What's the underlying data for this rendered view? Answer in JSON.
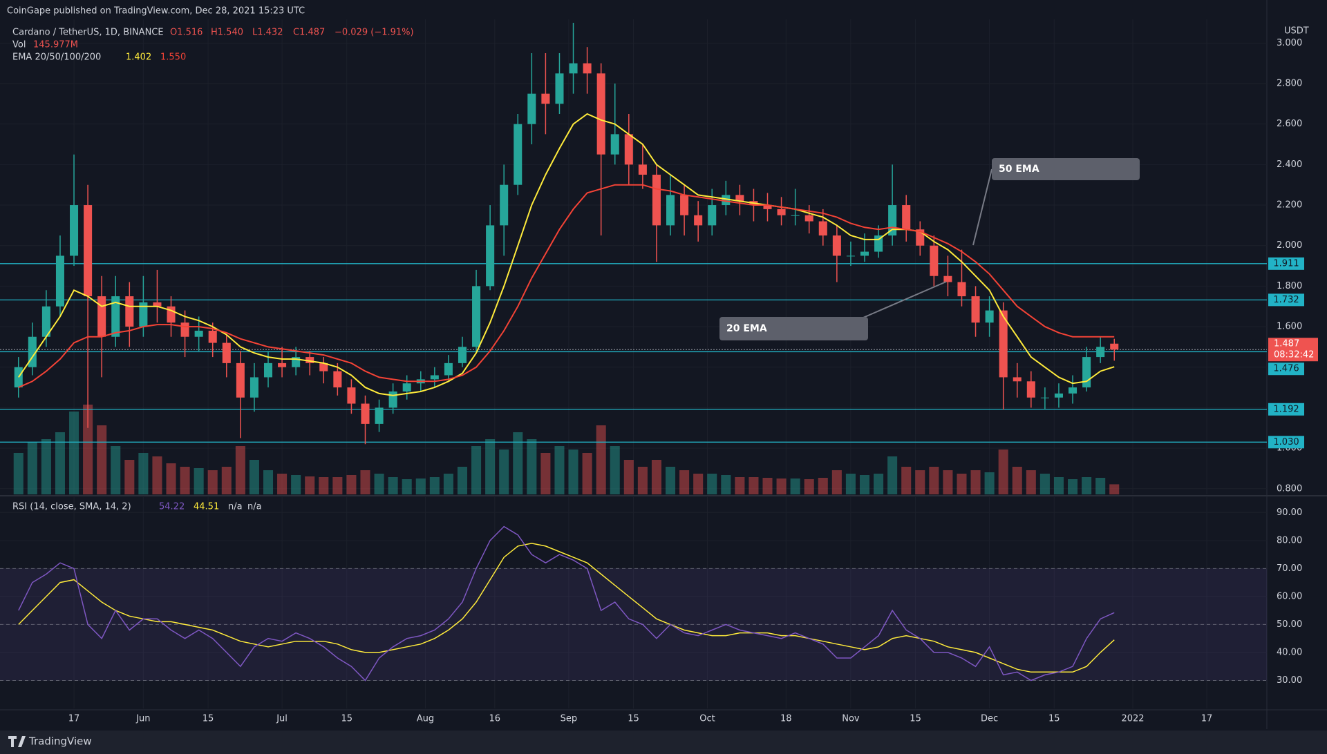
{
  "chart_data": {
    "type": "candlestick",
    "header": {
      "publisher": "CoinGape published on TradingView.com, Dec 28, 2021 15:23 UTC",
      "symbol": "Cardano / TetherUS, 1D, BINANCE",
      "ohlc": [
        "O1.516",
        "H1.540",
        "L1.432",
        "C1.487",
        "−0.029 (−1.91%)"
      ],
      "ema_legend": {
        "label": "EMA 20/50/100/200",
        "values": [
          "1.402",
          "1.550"
        ]
      },
      "currency": "USDT"
    },
    "footer": "TradingView",
    "colors": {
      "up": "#26a69a",
      "down": "#ef5350"
    },
    "x": [
      "2021-05-05",
      "2021-05-08",
      "2021-05-11",
      "2021-05-14",
      "2021-05-17",
      "2021-05-20",
      "2021-05-23",
      "2021-05-26",
      "2021-05-29",
      "2021-06-01",
      "2021-06-04",
      "2021-06-07",
      "2021-06-10",
      "2021-06-13",
      "2021-06-16",
      "2021-06-19",
      "2021-06-22",
      "2021-06-25",
      "2021-06-28",
      "2021-07-01",
      "2021-07-04",
      "2021-07-07",
      "2021-07-10",
      "2021-07-13",
      "2021-07-16",
      "2021-07-19",
      "2021-07-22",
      "2021-07-25",
      "2021-07-28",
      "2021-07-31",
      "2021-08-03",
      "2021-08-06",
      "2021-08-09",
      "2021-08-12",
      "2021-08-15",
      "2021-08-18",
      "2021-08-21",
      "2021-08-24",
      "2021-08-27",
      "2021-08-30",
      "2021-09-02",
      "2021-09-05",
      "2021-09-08",
      "2021-09-11",
      "2021-09-14",
      "2021-09-17",
      "2021-09-20",
      "2021-09-23",
      "2021-09-26",
      "2021-09-29",
      "2021-10-02",
      "2021-10-05",
      "2021-10-08",
      "2021-10-11",
      "2021-10-14",
      "2021-10-17",
      "2021-10-20",
      "2021-10-23",
      "2021-10-26",
      "2021-10-29",
      "2021-11-01",
      "2021-11-04",
      "2021-11-07",
      "2021-11-10",
      "2021-11-13",
      "2021-11-16",
      "2021-11-19",
      "2021-11-22",
      "2021-11-25",
      "2021-11-28",
      "2021-12-01",
      "2021-12-04",
      "2021-12-07",
      "2021-12-10",
      "2021-12-13",
      "2021-12-16",
      "2021-12-19",
      "2021-12-22",
      "2021-12-25",
      "2021-12-28"
    ],
    "open": [
      1.3,
      1.4,
      1.55,
      1.7,
      1.95,
      2.2,
      1.75,
      1.55,
      1.75,
      1.6,
      1.72,
      1.7,
      1.62,
      1.55,
      1.58,
      1.52,
      1.42,
      1.25,
      1.35,
      1.42,
      1.4,
      1.45,
      1.42,
      1.38,
      1.3,
      1.22,
      1.12,
      1.2,
      1.28,
      1.32,
      1.34,
      1.36,
      1.42,
      1.5,
      1.8,
      2.1,
      2.3,
      2.6,
      2.75,
      2.7,
      2.85,
      2.9,
      2.85,
      2.45,
      2.55,
      2.4,
      2.35,
      2.1,
      2.25,
      2.15,
      2.1,
      2.2,
      2.25,
      2.22,
      2.2,
      2.18,
      2.15,
      2.15,
      2.12,
      2.05,
      1.95,
      1.95,
      1.97,
      2.05,
      2.2,
      2.08,
      2.0,
      1.85,
      1.82,
      1.75,
      1.62,
      1.68,
      1.35,
      1.33,
      1.25,
      1.25,
      1.27,
      1.3,
      1.45,
      1.516
    ],
    "high": [
      1.45,
      1.62,
      1.78,
      2.05,
      2.45,
      2.3,
      1.85,
      1.85,
      1.82,
      1.85,
      1.88,
      1.75,
      1.68,
      1.65,
      1.62,
      1.56,
      1.48,
      1.42,
      1.48,
      1.5,
      1.5,
      1.48,
      1.45,
      1.42,
      1.34,
      1.26,
      1.24,
      1.32,
      1.36,
      1.38,
      1.4,
      1.46,
      1.55,
      1.88,
      2.2,
      2.4,
      2.65,
      2.95,
      2.95,
      2.95,
      3.1,
      2.98,
      2.9,
      2.8,
      2.65,
      2.5,
      2.4,
      2.35,
      2.3,
      2.22,
      2.28,
      2.32,
      2.3,
      2.28,
      2.26,
      2.24,
      2.28,
      2.2,
      2.18,
      2.1,
      2.02,
      2.06,
      2.1,
      2.4,
      2.25,
      2.12,
      2.05,
      1.95,
      1.98,
      1.8,
      1.75,
      1.72,
      1.42,
      1.38,
      1.3,
      1.32,
      1.36,
      1.5,
      1.55,
      1.54
    ],
    "low": [
      1.25,
      1.36,
      1.5,
      1.65,
      1.9,
      1.1,
      1.35,
      1.5,
      1.5,
      1.55,
      1.62,
      1.55,
      1.45,
      1.48,
      1.45,
      1.35,
      1.05,
      1.18,
      1.3,
      1.35,
      1.36,
      1.36,
      1.32,
      1.26,
      1.17,
      1.02,
      1.08,
      1.17,
      1.24,
      1.28,
      1.3,
      1.33,
      1.4,
      1.48,
      1.78,
      1.95,
      2.25,
      2.5,
      2.55,
      2.65,
      2.75,
      2.75,
      2.05,
      2.4,
      2.3,
      2.28,
      1.92,
      2.05,
      2.05,
      2.02,
      2.05,
      2.15,
      2.15,
      2.12,
      2.12,
      2.1,
      2.1,
      2.06,
      2.0,
      1.82,
      1.9,
      1.92,
      1.94,
      2.0,
      2.02,
      1.95,
      1.8,
      1.75,
      1.7,
      1.55,
      1.55,
      1.19,
      1.25,
      1.2,
      1.19,
      1.2,
      1.22,
      1.28,
      1.42,
      1.432
    ],
    "close": [
      1.4,
      1.55,
      1.7,
      1.95,
      2.2,
      1.75,
      1.55,
      1.75,
      1.6,
      1.72,
      1.7,
      1.62,
      1.55,
      1.58,
      1.52,
      1.42,
      1.25,
      1.35,
      1.42,
      1.4,
      1.45,
      1.42,
      1.38,
      1.3,
      1.22,
      1.12,
      1.2,
      1.28,
      1.32,
      1.34,
      1.36,
      1.42,
      1.5,
      1.8,
      2.1,
      2.3,
      2.6,
      2.75,
      2.7,
      2.85,
      2.9,
      2.85,
      2.45,
      2.55,
      2.4,
      2.35,
      2.1,
      2.25,
      2.15,
      2.1,
      2.2,
      2.25,
      2.22,
      2.2,
      2.18,
      2.15,
      2.15,
      2.12,
      2.05,
      1.95,
      1.95,
      1.97,
      2.05,
      2.2,
      2.08,
      2.0,
      1.85,
      1.82,
      1.75,
      1.62,
      1.68,
      1.35,
      1.33,
      1.25,
      1.25,
      1.27,
      1.3,
      1.45,
      1.5,
      1.487
    ],
    "xlim": [
      "2021-05-01",
      "2022-01-30"
    ],
    "xticks": [
      {
        "value": "2021-05-17",
        "label": "17"
      },
      {
        "value": "2021-06-01",
        "label": "Jun"
      },
      {
        "value": "2021-06-15",
        "label": "15"
      },
      {
        "value": "2021-07-01",
        "label": "Jul"
      },
      {
        "value": "2021-07-15",
        "label": "15"
      },
      {
        "value": "2021-08-01",
        "label": "Aug"
      },
      {
        "value": "2021-08-16",
        "label": "16"
      },
      {
        "value": "2021-09-01",
        "label": "Sep"
      },
      {
        "value": "2021-09-15",
        "label": "15"
      },
      {
        "value": "2021-10-01",
        "label": "Oct"
      },
      {
        "value": "2021-10-18",
        "label": "18"
      },
      {
        "value": "2021-11-01",
        "label": "Nov"
      },
      {
        "value": "2021-11-15",
        "label": "15"
      },
      {
        "value": "2021-12-01",
        "label": "Dec"
      },
      {
        "value": "2021-12-15",
        "label": "15"
      },
      {
        "value": "2022-01-01",
        "label": "2022"
      },
      {
        "value": "2022-01-17",
        "label": "17"
      }
    ],
    "ylim": [
      0.772,
      3.117
    ],
    "yticks": [
      {
        "value": 3.0,
        "label": "3.000"
      },
      {
        "value": 2.8,
        "label": "2.800"
      },
      {
        "value": 2.6,
        "label": "2.600"
      },
      {
        "value": 2.4,
        "label": "2.400"
      },
      {
        "value": 2.2,
        "label": "2.200"
      },
      {
        "value": 2.0,
        "label": "2.000"
      },
      {
        "value": 1.8,
        "label": "1.800"
      },
      {
        "value": 1.6,
        "label": "1.600"
      },
      {
        "value": 1.4,
        "label": "1.400"
      },
      {
        "value": 1.2,
        "label": "1.200"
      },
      {
        "value": 1.0,
        "label": "1.000"
      },
      {
        "value": 0.8,
        "label": "0.800"
      }
    ],
    "grid": true,
    "levels": [
      1.911,
      1.732,
      1.476,
      1.192,
      {
        "value": 1.03,
        "label": "1.030"
      }
    ],
    "level_color": "#22b3c6",
    "last_price": {
      "value": 1.487,
      "countdown": "08:32:42"
    },
    "ema": [
      {
        "color": "#ffeb3b",
        "values": [
          1.35,
          1.45,
          1.55,
          1.65,
          1.78,
          1.75,
          1.7,
          1.72,
          1.7,
          1.7,
          1.7,
          1.68,
          1.65,
          1.63,
          1.6,
          1.56,
          1.5,
          1.47,
          1.45,
          1.44,
          1.44,
          1.43,
          1.42,
          1.4,
          1.36,
          1.3,
          1.27,
          1.26,
          1.27,
          1.28,
          1.3,
          1.33,
          1.37,
          1.47,
          1.62,
          1.8,
          2.0,
          2.2,
          2.35,
          2.48,
          2.6,
          2.65,
          2.62,
          2.6,
          2.55,
          2.5,
          2.4,
          2.35,
          2.3,
          2.25,
          2.24,
          2.23,
          2.22,
          2.21,
          2.2,
          2.19,
          2.18,
          2.16,
          2.14,
          2.1,
          2.05,
          2.03,
          2.03,
          2.08,
          2.08,
          2.07,
          2.02,
          1.98,
          1.92,
          1.85,
          1.78,
          1.65,
          1.55,
          1.45,
          1.4,
          1.35,
          1.32,
          1.33,
          1.38,
          1.402
        ]
      },
      {
        "color": "#f44336",
        "values": [
          1.3,
          1.33,
          1.38,
          1.44,
          1.52,
          1.55,
          1.55,
          1.57,
          1.58,
          1.6,
          1.61,
          1.61,
          1.6,
          1.6,
          1.59,
          1.57,
          1.54,
          1.52,
          1.5,
          1.49,
          1.48,
          1.47,
          1.46,
          1.44,
          1.42,
          1.38,
          1.35,
          1.34,
          1.33,
          1.33,
          1.33,
          1.34,
          1.36,
          1.4,
          1.48,
          1.58,
          1.7,
          1.84,
          1.96,
          2.08,
          2.18,
          2.26,
          2.28,
          2.3,
          2.3,
          2.3,
          2.28,
          2.27,
          2.25,
          2.24,
          2.23,
          2.22,
          2.21,
          2.2,
          2.2,
          2.19,
          2.18,
          2.17,
          2.16,
          2.14,
          2.11,
          2.09,
          2.08,
          2.09,
          2.08,
          2.07,
          2.04,
          2.01,
          1.97,
          1.92,
          1.86,
          1.78,
          1.7,
          1.65,
          1.6,
          1.57,
          1.55,
          1.55,
          1.55,
          1.55
        ]
      }
    ],
    "annotations": [
      "50 EMA",
      "20 EMA"
    ],
    "volume": {
      "label": "Vol",
      "value_label": "145.977M",
      "vlim": [
        0,
        1500
      ],
      "values": [
        600,
        750,
        800,
        900,
        1200,
        1300,
        1000,
        700,
        500,
        600,
        550,
        450,
        400,
        380,
        350,
        400,
        700,
        500,
        350,
        300,
        280,
        260,
        250,
        250,
        280,
        350,
        300,
        250,
        220,
        230,
        250,
        300,
        400,
        700,
        800,
        650,
        900,
        800,
        600,
        700,
        650,
        600,
        1000,
        700,
        500,
        400,
        500,
        400,
        350,
        300,
        300,
        280,
        250,
        250,
        240,
        230,
        230,
        220,
        240,
        350,
        300,
        280,
        300,
        550,
        400,
        350,
        400,
        350,
        300,
        350,
        320,
        650,
        400,
        350,
        300,
        250,
        220,
        250,
        240,
        145.977
      ]
    },
    "rsi": {
      "title": "RSI (14, close, SMA, 14, 2)",
      "legend_values": [
        "54.22",
        "44.51",
        "n/a",
        "n/a"
      ],
      "color": "#7e57c2",
      "values": [
        55,
        65,
        68,
        72,
        70,
        50,
        45,
        55,
        48,
        52,
        52,
        48,
        45,
        48,
        45,
        40,
        35,
        42,
        45,
        44,
        47,
        45,
        42,
        38,
        35,
        30,
        38,
        42,
        45,
        46,
        48,
        52,
        58,
        70,
        80,
        85,
        82,
        75,
        72,
        75,
        73,
        70,
        55,
        58,
        52,
        50,
        45,
        50,
        47,
        46,
        48,
        50,
        48,
        47,
        46,
        45,
        47,
        45,
        43,
        38,
        38,
        42,
        46,
        55,
        48,
        45,
        40,
        40,
        38,
        35,
        42,
        32,
        33,
        30,
        32,
        33,
        35,
        45,
        52,
        54.22
      ],
      "sma": {
        "color": "#ffeb3b",
        "values": [
          50,
          55,
          60,
          65,
          66,
          62,
          58,
          55,
          53,
          52,
          51,
          51,
          50,
          49,
          48,
          46,
          44,
          43,
          42,
          43,
          44,
          44,
          44,
          43,
          41,
          40,
          40,
          41,
          42,
          43,
          45,
          48,
          52,
          58,
          66,
          74,
          78,
          79,
          78,
          76,
          74,
          72,
          68,
          64,
          60,
          56,
          52,
          50,
          48,
          47,
          46,
          46,
          47,
          47,
          47,
          46,
          46,
          45,
          44,
          43,
          42,
          41,
          42,
          45,
          46,
          45,
          44,
          42,
          41,
          40,
          38,
          36,
          34,
          33,
          33,
          33,
          33,
          35,
          40,
          44.51
        ]
      },
      "ylim": [
        20,
        95.5
      ],
      "yticks": [
        {
          "value": 90,
          "label": "90.00"
        },
        {
          "value": 80,
          "label": "80.00"
        },
        {
          "value": 70,
          "label": "70.00"
        },
        {
          "value": 60,
          "label": "60.00"
        },
        {
          "value": 50,
          "label": "50.00"
        },
        {
          "value": 40,
          "label": "40.00"
        },
        {
          "value": 30,
          "label": "30.00"
        }
      ],
      "band": [
        30,
        70
      ],
      "hlines": [
        30,
        50,
        70
      ]
    }
  }
}
